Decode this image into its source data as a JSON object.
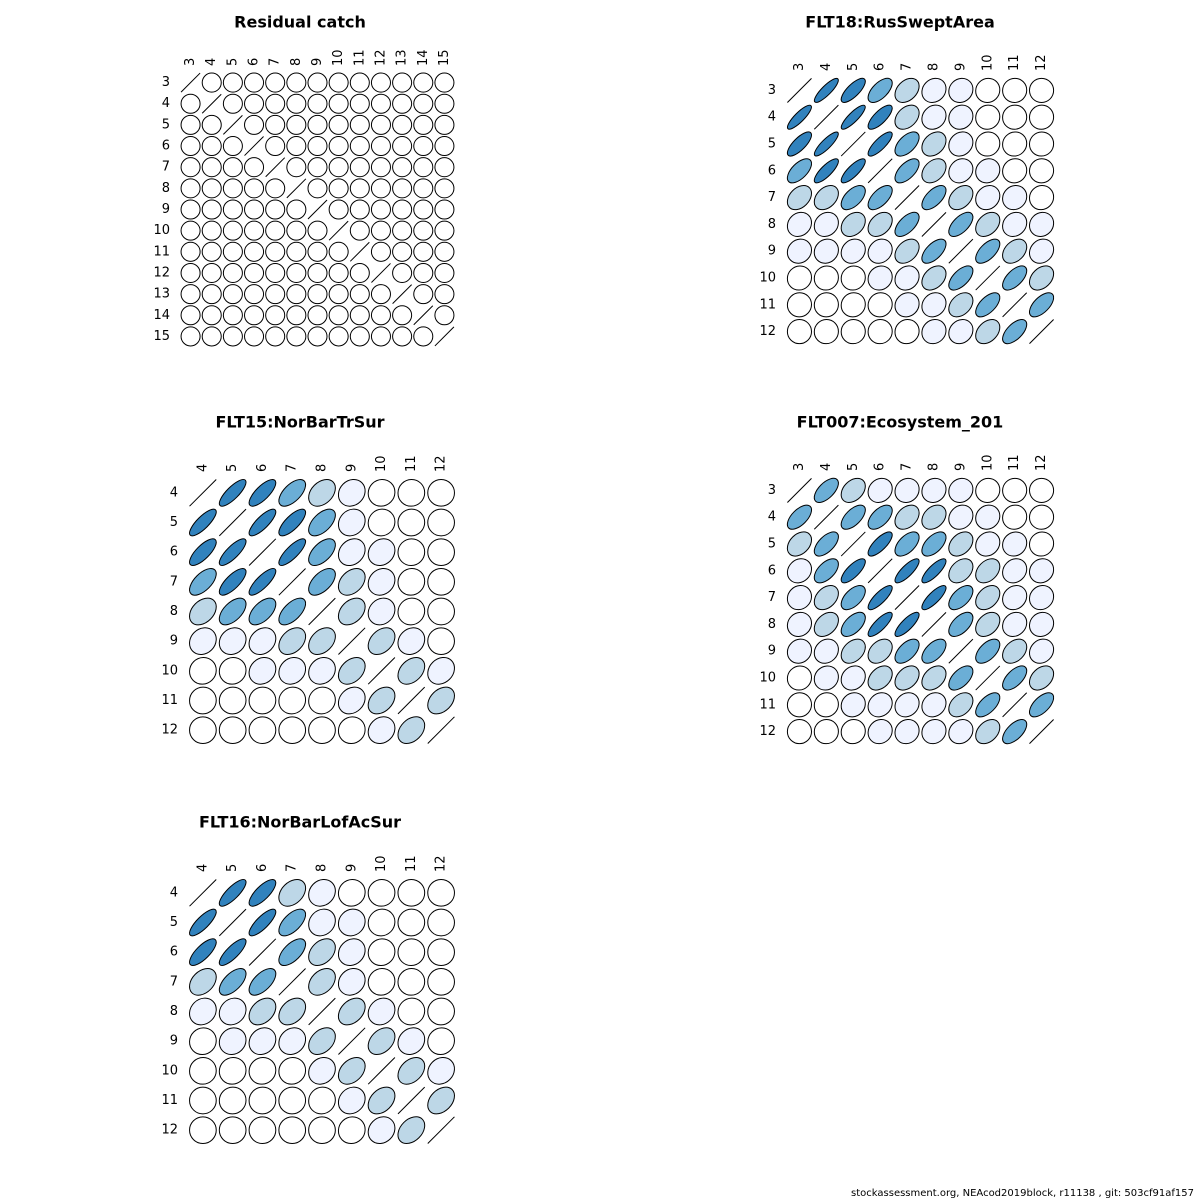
{
  "colors": {
    "neutral": "#ffffff",
    "pos_scale": [
      "#ffffff",
      "#eff3ff",
      "#bdd7e7",
      "#6baed6",
      "#3182bd"
    ],
    "stroke": "#000000"
  },
  "footer": "stockassessment.org, NEAcod2019block, r11138 , git: 503cf91af157",
  "chart_data": [
    {
      "type": "correlation-ellipse-matrix",
      "title": "Residual catch",
      "labels": [
        "3",
        "4",
        "5",
        "6",
        "7",
        "8",
        "9",
        "10",
        "11",
        "12",
        "13",
        "14",
        "15"
      ],
      "corr": [
        [
          1,
          0,
          0,
          0,
          0,
          0,
          0,
          0,
          0,
          0,
          0,
          0,
          0
        ],
        [
          0,
          1,
          0,
          0,
          0,
          0,
          0,
          0,
          0,
          0,
          0,
          0,
          0
        ],
        [
          0,
          0,
          1,
          0,
          0,
          0,
          0,
          0,
          0,
          0,
          0,
          0,
          0
        ],
        [
          0,
          0,
          0,
          1,
          0,
          0,
          0,
          0,
          0,
          0,
          0,
          0,
          0
        ],
        [
          0,
          0,
          0,
          0,
          1,
          0,
          0,
          0,
          0,
          0,
          0,
          0,
          0
        ],
        [
          0,
          0,
          0,
          0,
          0,
          1,
          0,
          0,
          0,
          0,
          0,
          0,
          0
        ],
        [
          0,
          0,
          0,
          0,
          0,
          0,
          1,
          0,
          0,
          0,
          0,
          0,
          0
        ],
        [
          0,
          0,
          0,
          0,
          0,
          0,
          0,
          1,
          0,
          0,
          0,
          0,
          0
        ],
        [
          0,
          0,
          0,
          0,
          0,
          0,
          0,
          0,
          1,
          0,
          0,
          0,
          0
        ],
        [
          0,
          0,
          0,
          0,
          0,
          0,
          0,
          0,
          0,
          1,
          0,
          0,
          0
        ],
        [
          0,
          0,
          0,
          0,
          0,
          0,
          0,
          0,
          0,
          0,
          1,
          0,
          0
        ],
        [
          0,
          0,
          0,
          0,
          0,
          0,
          0,
          0,
          0,
          0,
          0,
          1,
          0
        ],
        [
          0,
          0,
          0,
          0,
          0,
          0,
          0,
          0,
          0,
          0,
          0,
          0,
          1
        ]
      ]
    },
    {
      "type": "correlation-ellipse-matrix",
      "title": "FLT18:RusSweptArea",
      "labels": [
        "3",
        "4",
        "5",
        "6",
        "7",
        "8",
        "9",
        "10",
        "11",
        "12"
      ],
      "corr": [
        [
          1,
          0.85,
          0.75,
          0.6,
          0.35,
          0.15,
          0.1,
          0.05,
          0.02,
          0.0
        ],
        [
          0.85,
          1,
          0.85,
          0.75,
          0.35,
          0.15,
          0.1,
          0.05,
          0.02,
          0.02
        ],
        [
          0.75,
          0.85,
          1,
          0.8,
          0.55,
          0.3,
          0.15,
          0.05,
          0.05,
          0.02
        ],
        [
          0.6,
          0.8,
          0.8,
          1,
          0.6,
          0.35,
          0.15,
          0.1,
          0.05,
          0.02
        ],
        [
          0.35,
          0.35,
          0.55,
          0.6,
          1,
          0.6,
          0.35,
          0.15,
          0.1,
          0.05
        ],
        [
          0.15,
          0.15,
          0.3,
          0.35,
          0.6,
          1,
          0.6,
          0.35,
          0.15,
          0.1
        ],
        [
          0.1,
          0.1,
          0.15,
          0.15,
          0.35,
          0.6,
          1,
          0.6,
          0.35,
          0.15
        ],
        [
          0.05,
          0.05,
          0.05,
          0.1,
          0.15,
          0.35,
          0.6,
          1,
          0.6,
          0.35
        ],
        [
          0.02,
          0.02,
          0.05,
          0.05,
          0.1,
          0.15,
          0.35,
          0.6,
          1,
          0.6
        ],
        [
          0.0,
          0.02,
          0.02,
          0.02,
          0.05,
          0.1,
          0.15,
          0.35,
          0.6,
          1
        ]
      ]
    },
    {
      "type": "correlation-ellipse-matrix",
      "title": "FLT15:NorBarTrSur",
      "labels": [
        "4",
        "5",
        "6",
        "7",
        "8",
        "9",
        "10",
        "11",
        "12"
      ],
      "corr": [
        [
          1,
          0.8,
          0.75,
          0.6,
          0.35,
          0.15,
          0.05,
          0.02,
          0.0
        ],
        [
          0.8,
          1,
          0.8,
          0.75,
          0.55,
          0.15,
          0.05,
          0.02,
          0.0
        ],
        [
          0.75,
          0.8,
          1,
          0.8,
          0.55,
          0.2,
          0.15,
          0.02,
          0.0
        ],
        [
          0.6,
          0.75,
          0.8,
          1,
          0.55,
          0.35,
          0.15,
          0.05,
          0.0
        ],
        [
          0.35,
          0.55,
          0.55,
          0.6,
          1,
          0.35,
          0.15,
          0.05,
          0.0
        ],
        [
          0.15,
          0.15,
          0.2,
          0.35,
          0.35,
          1,
          0.35,
          0.15,
          0.0
        ],
        [
          0.05,
          0.05,
          0.15,
          0.15,
          0.15,
          0.35,
          1,
          0.35,
          0.2
        ],
        [
          0.02,
          0.02,
          0.02,
          0.05,
          0.05,
          0.2,
          0.35,
          1,
          0.35
        ],
        [
          0.0,
          0.0,
          0.0,
          0.0,
          0.0,
          0.05,
          0.15,
          0.35,
          1
        ]
      ]
    },
    {
      "type": "correlation-ellipse-matrix",
      "title": "FLT007:Ecosystem_201",
      "labels": [
        "3",
        "4",
        "5",
        "6",
        "7",
        "8",
        "9",
        "10",
        "11",
        "12"
      ],
      "corr": [
        [
          1,
          0.6,
          0.35,
          0.15,
          0.1,
          0.1,
          0.1,
          0.05,
          0.02,
          0.0
        ],
        [
          0.6,
          1,
          0.6,
          0.55,
          0.35,
          0.3,
          0.15,
          0.1,
          0.05,
          0.02
        ],
        [
          0.35,
          0.6,
          1,
          0.75,
          0.55,
          0.55,
          0.35,
          0.15,
          0.1,
          0.05
        ],
        [
          0.15,
          0.55,
          0.75,
          1,
          0.8,
          0.8,
          0.35,
          0.35,
          0.15,
          0.1
        ],
        [
          0.1,
          0.35,
          0.55,
          0.8,
          1,
          0.8,
          0.55,
          0.35,
          0.15,
          0.1
        ],
        [
          0.1,
          0.35,
          0.55,
          0.8,
          0.8,
          1,
          0.55,
          0.35,
          0.15,
          0.1
        ],
        [
          0.1,
          0.15,
          0.35,
          0.35,
          0.55,
          0.55,
          1,
          0.55,
          0.35,
          0.15
        ],
        [
          0.05,
          0.1,
          0.15,
          0.35,
          0.35,
          0.35,
          0.55,
          1,
          0.6,
          0.35
        ],
        [
          0.02,
          0.05,
          0.1,
          0.15,
          0.15,
          0.15,
          0.35,
          0.6,
          1,
          0.6
        ],
        [
          0.0,
          0.02,
          0.05,
          0.1,
          0.1,
          0.1,
          0.15,
          0.35,
          0.6,
          1
        ]
      ]
    },
    {
      "type": "correlation-ellipse-matrix",
      "title": "FLT16:NorBarLofAcSur",
      "labels": [
        "4",
        "5",
        "6",
        "7",
        "8",
        "9",
        "10",
        "11",
        "12"
      ],
      "corr": [
        [
          1,
          0.8,
          0.75,
          0.35,
          0.15,
          0.05,
          0.02,
          0.0,
          0.0
        ],
        [
          0.8,
          1,
          0.8,
          0.6,
          0.15,
          0.1,
          0.05,
          0.02,
          0.0
        ],
        [
          0.75,
          0.8,
          1,
          0.6,
          0.35,
          0.15,
          0.05,
          0.02,
          0.0
        ],
        [
          0.35,
          0.6,
          0.6,
          1,
          0.35,
          0.15,
          0.05,
          0.02,
          0.0
        ],
        [
          0.15,
          0.15,
          0.35,
          0.35,
          1,
          0.35,
          0.15,
          0.05,
          0.02
        ],
        [
          0.05,
          0.1,
          0.15,
          0.15,
          0.35,
          1,
          0.35,
          0.15,
          0.05
        ],
        [
          0.02,
          0.05,
          0.05,
          0.05,
          0.15,
          0.35,
          1,
          0.35,
          0.15
        ],
        [
          0.0,
          0.02,
          0.02,
          0.02,
          0.05,
          0.15,
          0.35,
          1,
          0.35
        ],
        [
          0.0,
          0.0,
          0.0,
          0.0,
          0.0,
          0.05,
          0.15,
          0.35,
          1
        ]
      ]
    }
  ]
}
